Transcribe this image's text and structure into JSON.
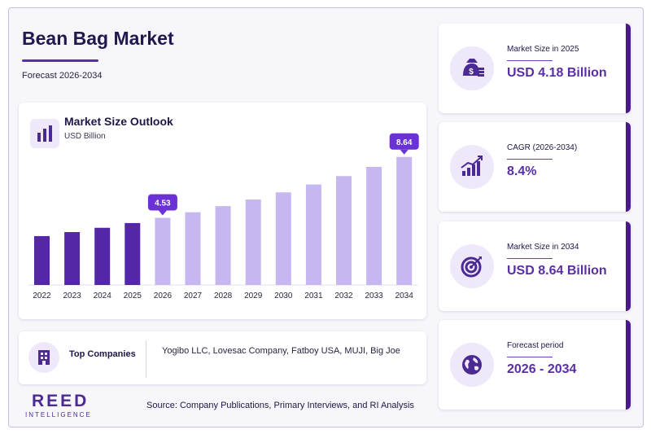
{
  "header": {
    "title": "Bean Bag Market",
    "subtitle": "Forecast 2026-2034"
  },
  "chart_data": {
    "type": "bar",
    "title": "Market Size Outlook",
    "unit": "USD Billion",
    "categories": [
      "2022",
      "2023",
      "2024",
      "2025",
      "2026",
      "2027",
      "2028",
      "2029",
      "2030",
      "2031",
      "2032",
      "2033",
      "2034"
    ],
    "values": [
      3.3,
      3.57,
      3.86,
      4.18,
      4.53,
      4.91,
      5.32,
      5.77,
      6.25,
      6.78,
      7.35,
      7.97,
      8.64
    ],
    "historical_until": "2025",
    "callouts": [
      {
        "category": "2026",
        "label": "4.53"
      },
      {
        "category": "2034",
        "label": "8.64"
      }
    ],
    "colors": {
      "historical": "#5426a8",
      "forecast": "#c6b7f0",
      "callout": "#6a32d6"
    }
  },
  "companies": {
    "label": "Top Companies",
    "list": "Yogibo LLC, Lovesac Company, Fatboy USA, MUJI, Big Joe"
  },
  "logo": {
    "main": "REED",
    "sub": "INTELLIGENCE"
  },
  "source": "Source: Company Publications, Primary Interviews, and RI Analysis",
  "stats": [
    {
      "label": "Market Size in 2025",
      "value": "USD 4.18 Billion",
      "icon": "money-bag-icon"
    },
    {
      "label": "CAGR (2026-2034)",
      "value": "8.4%",
      "icon": "growth-chart-icon"
    },
    {
      "label": "Market Size in 2034",
      "value": "USD 8.64 Billion",
      "icon": "target-icon"
    },
    {
      "label": "Forecast period",
      "value": "2026 - 2034",
      "icon": "globe-icon"
    }
  ]
}
